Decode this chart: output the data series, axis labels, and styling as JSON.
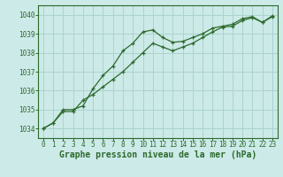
{
  "background_color": "#cceae7",
  "grid_color": "#aad4d0",
  "line_color": "#2d6a2d",
  "marker_color": "#2d6a2d",
  "xlabel": "Graphe pression niveau de la mer (hPa)",
  "xlabel_fontsize": 7.0,
  "ylim": [
    1033.5,
    1040.5
  ],
  "xlim": [
    -0.5,
    23.5
  ],
  "yticks": [
    1034,
    1035,
    1036,
    1037,
    1038,
    1039,
    1040
  ],
  "xticks": [
    0,
    1,
    2,
    3,
    4,
    5,
    6,
    7,
    8,
    9,
    10,
    11,
    12,
    13,
    14,
    15,
    16,
    17,
    18,
    19,
    20,
    21,
    22,
    23
  ],
  "series1_x": [
    0,
    1,
    2,
    3,
    4,
    5,
    6,
    7,
    8,
    9,
    10,
    11,
    12,
    13,
    14,
    15,
    16,
    17,
    18,
    19,
    20,
    21,
    22,
    23
  ],
  "series1_y": [
    1034.0,
    1034.3,
    1035.0,
    1035.0,
    1035.2,
    1036.1,
    1036.8,
    1037.3,
    1038.1,
    1038.5,
    1039.1,
    1039.2,
    1038.8,
    1038.55,
    1038.6,
    1038.8,
    1039.0,
    1039.3,
    1039.4,
    1039.5,
    1039.8,
    1039.9,
    1039.6,
    1039.9
  ],
  "series2_x": [
    0,
    1,
    2,
    3,
    4,
    5,
    6,
    7,
    8,
    9,
    10,
    11,
    12,
    13,
    14,
    15,
    16,
    17,
    18,
    19,
    20,
    21,
    22,
    23
  ],
  "series2_y": [
    1034.0,
    1034.3,
    1034.9,
    1034.9,
    1035.5,
    1035.8,
    1036.2,
    1036.6,
    1037.0,
    1037.5,
    1038.0,
    1038.5,
    1038.3,
    1038.1,
    1038.3,
    1038.5,
    1038.8,
    1039.1,
    1039.35,
    1039.4,
    1039.7,
    1039.85,
    1039.6,
    1039.95
  ],
  "tick_fontsize": 5.5,
  "tick_color": "#2d6a2d",
  "spine_color": "#2d6a2d"
}
